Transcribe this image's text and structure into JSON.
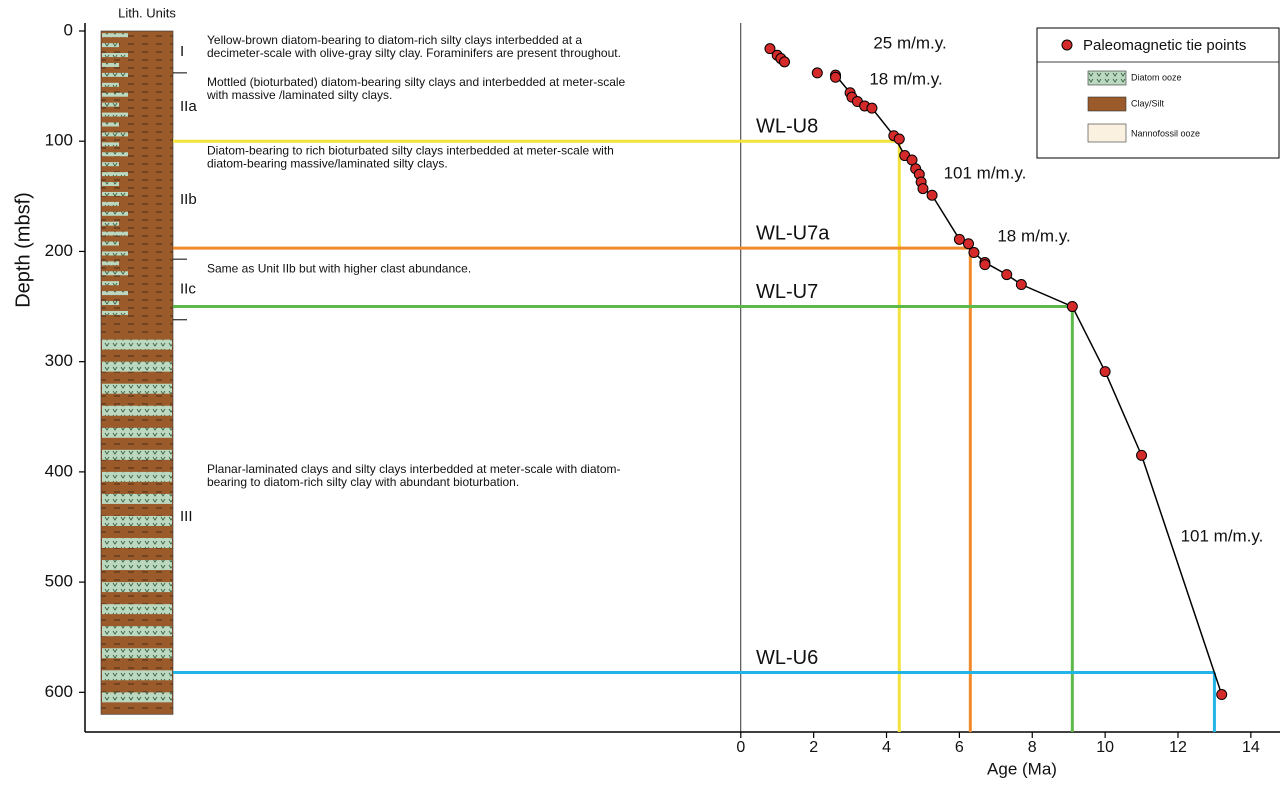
{
  "chart_data": {
    "type": "scatter",
    "y_label": "Depth (mbsf)",
    "x_label": "Age (Ma)",
    "column_label": "Lith. Units",
    "ylim": [
      0,
      636
    ],
    "yticks": [
      0,
      100,
      200,
      300,
      400,
      500,
      600
    ],
    "xlim": [
      -18,
      14.8
    ],
    "xticks": [
      0,
      2,
      4,
      6,
      8,
      10,
      12,
      14
    ],
    "series": [
      {
        "name": "Paleomagnetic tie points",
        "color": "#d42a2a",
        "x": [
          0.8,
          1.0,
          1.1,
          1.2,
          2.1,
          2.6,
          2.6,
          3.0,
          3.05,
          3.2,
          3.4,
          3.6,
          4.2,
          4.35,
          4.5,
          4.7,
          4.8,
          4.9,
          4.95,
          5.0,
          5.25,
          6.0,
          6.25,
          6.4,
          6.7,
          6.7,
          7.3,
          7.7,
          9.1,
          10.0,
          11.0,
          13.2
        ],
        "values": [
          16,
          22,
          25,
          28,
          38,
          40,
          42,
          56,
          60,
          64,
          68,
          70,
          95,
          98,
          113,
          117,
          125,
          130,
          137,
          143,
          149,
          189,
          193,
          201,
          210,
          212,
          221,
          230,
          250,
          309,
          385,
          602
        ]
      },
      {
        "color": "#000000",
        "x": [
          2.6,
          3.0,
          3.6,
          4.2,
          4.5,
          4.9,
          5.0,
          5.25,
          6.0,
          6.4,
          6.7,
          7.3,
          7.7,
          9.1,
          10.0,
          11.0,
          13.2
        ],
        "values": [
          40,
          56,
          70,
          95,
          113,
          130,
          143,
          149,
          189,
          201,
          210,
          221,
          230,
          250,
          309,
          385,
          602
        ]
      }
    ],
    "horizons": [
      {
        "label": "WL-U8",
        "depth": 100,
        "age": 4.35,
        "color": "#f4e23c"
      },
      {
        "label": "WL-U7a",
        "depth": 197,
        "age": 6.3,
        "color": "#f08a2a"
      },
      {
        "label": "WL-U7",
        "depth": 250,
        "age": 9.1,
        "color": "#5cb848"
      },
      {
        "label": "WL-U6",
        "depth": 582,
        "age": 13.0,
        "color": "#22b4e6"
      }
    ],
    "rates": [
      "25 m/m.y.",
      "18 m/m.y.",
      "101 m/m.y.",
      "18 m/m.y.",
      "101 m/m.y."
    ],
    "unit_boundaries": [
      38,
      100,
      207,
      262
    ],
    "column_base": 620,
    "units": [
      {
        "label": "I",
        "description": [
          "Yellow-brown diatom-bearing to diatom-rich silty clays interbedded at a",
          "decimeter-scale with olive-gray silty clay. Foraminifers are present throughout."
        ]
      },
      {
        "label": "IIa",
        "description": [
          "Mottled (bioturbated) diatom-bearing silty clays and interbedded at meter-scale",
          "with massive /laminated silty clays."
        ]
      },
      {
        "label": "IIb",
        "description": [
          "Diatom-bearing to rich bioturbated silty clays interbedded at meter-scale with",
          "diatom-bearing massive/laminated silty clays."
        ]
      },
      {
        "label": "IIc",
        "description": [
          "Same as Unit IIb but with higher clast abundance."
        ]
      },
      {
        "label": "III",
        "description": [
          "Planar-laminated clays and silty clays  interbedded at meter-scale with diatom-",
          "bearing to diatom-rich silty clay with abundant bioturbation."
        ]
      }
    ],
    "lithology_legend": [
      "Diatom ooze",
      "Clay/Silt",
      "Nannofossil ooze"
    ]
  }
}
